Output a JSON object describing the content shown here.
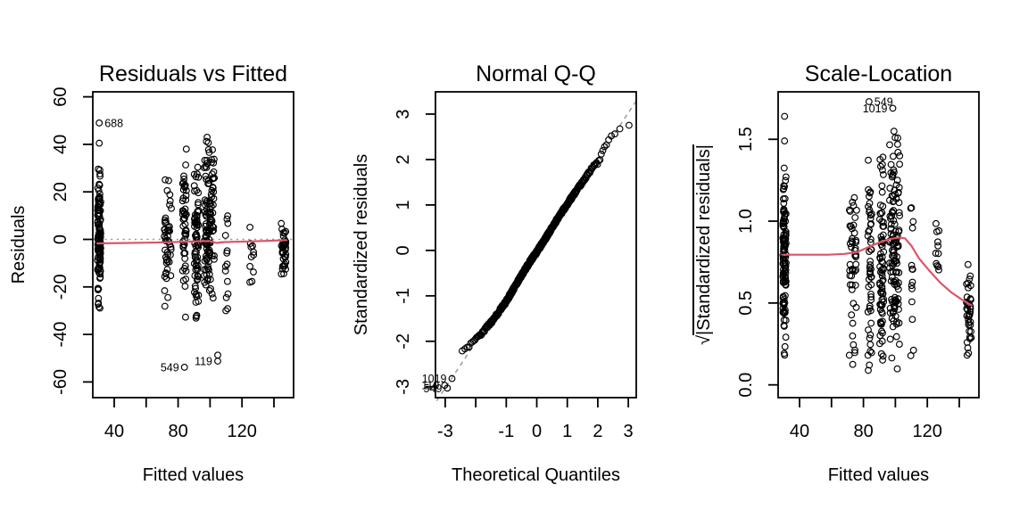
{
  "figure": {
    "background": "#ffffff",
    "point_color": "#000000",
    "smooth_line_color": "#dd5468",
    "reference_line_color": "#9c9c9c",
    "outlier_label_color": "#1c1c1c"
  },
  "chart_data": [
    {
      "type": "scatter",
      "title": "Residuals vs Fitted",
      "xlabel": "Fitted values",
      "ylabel": "Residuals",
      "xlim": [
        26.6,
        152.3
      ],
      "ylim": [
        -66.6,
        62.1
      ],
      "xticks": [
        40,
        60,
        80,
        100,
        120,
        140
      ],
      "xtick_labels": [
        "40",
        "",
        "80",
        "",
        "120",
        ""
      ],
      "yticks": [
        -60,
        -40,
        -20,
        0,
        20,
        40,
        60
      ],
      "ytick_labels": [
        "-60",
        "-40",
        "-20",
        "0",
        "20",
        "40",
        "60"
      ],
      "grid": false,
      "legend": null,
      "ref_line": {
        "type": "horizontal",
        "y": 0,
        "dash": "dotted"
      },
      "smooth": [
        [
          29.5,
          -1.7
        ],
        [
          45,
          -1.55
        ],
        [
          60,
          -1.4
        ],
        [
          72,
          -1.25
        ],
        [
          80,
          -1.1
        ],
        [
          88,
          -0.9
        ],
        [
          95,
          -0.75
        ],
        [
          100,
          -0.7
        ],
        [
          104,
          -1.5
        ],
        [
          108,
          -1.15
        ],
        [
          115,
          -1.0
        ],
        [
          125,
          -0.85
        ],
        [
          135,
          -0.65
        ],
        [
          147.5,
          -0.35
        ]
      ],
      "clusters": [
        {
          "x": 30.6,
          "sx": 1.0,
          "n": 115,
          "ymin": -33,
          "ymax": 33
        },
        {
          "x": 73.5,
          "sx": 2.3,
          "n": 48,
          "ymin": -31,
          "ymax": 31
        },
        {
          "x": 84.0,
          "sx": 1.2,
          "n": 52,
          "ymin": -35,
          "ymax": 40
        },
        {
          "x": 91.5,
          "sx": 1.4,
          "n": 75,
          "ymin": -40,
          "ymax": 37
        },
        {
          "x": 99.5,
          "sx": 3.2,
          "n": 125,
          "ymin": -36,
          "ymax": 46
        },
        {
          "x": 110.5,
          "sx": 0.9,
          "n": 14,
          "ymin": -32,
          "ymax": 21
        },
        {
          "x": 126.0,
          "sx": 1.3,
          "n": 11,
          "ymin": -22,
          "ymax": 13
        },
        {
          "x": 146.0,
          "sx": 1.5,
          "n": 38,
          "ymin": -18,
          "ymax": 10
        }
      ],
      "extra_points": [
        [
          30.6,
          40.5
        ],
        [
          104.8,
          -48.7
        ]
      ],
      "labeled_points": [
        {
          "x": 30.6,
          "y": 49.0,
          "label": "688",
          "side": "right"
        },
        {
          "x": 84.0,
          "y": -53.8,
          "label": "549",
          "side": "left"
        },
        {
          "x": 104.8,
          "y": -51.2,
          "label": "119",
          "side": "left"
        }
      ]
    },
    {
      "type": "scatter",
      "title": "Normal Q-Q",
      "xlabel": "Theoretical Quantiles",
      "ylabel": "Standardized residuals",
      "xlim": [
        -3.32,
        3.26
      ],
      "ylim": [
        -3.24,
        3.49
      ],
      "xticks": [
        -3,
        -2,
        -1,
        0,
        1,
        2,
        3
      ],
      "xtick_labels": [
        "-3",
        "",
        "-1",
        "0",
        "1",
        "2",
        "3"
      ],
      "yticks": [
        -3,
        -2,
        -1,
        0,
        1,
        2,
        3
      ],
      "ytick_labels": [
        "-3",
        "-2",
        "-1",
        "0",
        "1",
        "2",
        "3"
      ],
      "grid": false,
      "legend": null,
      "ref_line": {
        "type": "segment",
        "from": [
          -3.28,
          -3.31
        ],
        "to": [
          3.26,
          3.29
        ],
        "dash": "dashed"
      },
      "qq": {
        "n": 500,
        "skip_low": 3,
        "jitter": 0.035,
        "curve": [
          [
            -2.62,
            -2.28
          ],
          [
            -2.45,
            -2.2
          ],
          [
            -2.25,
            -2.12
          ],
          [
            -2.0,
            -1.97
          ],
          [
            -1.7,
            -1.74
          ],
          [
            -1.4,
            -1.5
          ],
          [
            -1.0,
            -1.12
          ],
          [
            -0.6,
            -0.66
          ],
          [
            -0.2,
            -0.22
          ],
          [
            0.0,
            -0.03
          ],
          [
            0.3,
            0.28
          ],
          [
            0.7,
            0.72
          ],
          [
            1.0,
            1.02
          ],
          [
            1.3,
            1.32
          ],
          [
            1.6,
            1.6
          ],
          [
            1.85,
            1.85
          ],
          [
            2.0,
            1.93
          ],
          [
            2.1,
            2.05
          ],
          [
            2.2,
            2.3
          ],
          [
            2.35,
            2.4
          ],
          [
            2.5,
            2.55
          ],
          [
            2.75,
            2.72
          ],
          [
            3.1,
            2.8
          ]
        ]
      },
      "labeled_points": [
        {
          "x": -2.78,
          "y": -2.82,
          "label": "1019",
          "side": "left"
        },
        {
          "x": -3.02,
          "y": -2.97,
          "label": "119",
          "side": "left"
        },
        {
          "x": -2.93,
          "y": -3.03,
          "label": "549",
          "side": "left"
        }
      ]
    },
    {
      "type": "scatter",
      "title": "Scale-Location",
      "xlabel": "Fitted values",
      "ylabel": "√|Standardized residuals|",
      "ylabel_parts": {
        "prefix": "√",
        "overline": "|Standardized residuals|"
      },
      "xlim": [
        26.6,
        152.3
      ],
      "ylim": [
        -0.078,
        1.79
      ],
      "xticks": [
        40,
        60,
        80,
        100,
        120,
        140
      ],
      "xtick_labels": [
        "40",
        "",
        "80",
        "",
        "120",
        ""
      ],
      "yticks": [
        0,
        0.5,
        1,
        1.5
      ],
      "ytick_labels": [
        "0.0",
        "0.5",
        "1.0",
        "1.5"
      ],
      "grid": false,
      "legend": null,
      "ref_line": null,
      "smooth": [
        [
          29.5,
          0.795
        ],
        [
          45,
          0.795
        ],
        [
          58,
          0.795
        ],
        [
          68,
          0.8
        ],
        [
          76,
          0.81
        ],
        [
          84,
          0.845
        ],
        [
          90,
          0.87
        ],
        [
          96,
          0.89
        ],
        [
          102,
          0.9
        ],
        [
          106,
          0.895
        ],
        [
          110,
          0.85
        ],
        [
          115,
          0.77
        ],
        [
          121,
          0.7
        ],
        [
          128,
          0.625
        ],
        [
          135,
          0.565
        ],
        [
          141,
          0.525
        ],
        [
          147.5,
          0.487
        ]
      ],
      "clusters": [
        {
          "x": 30.6,
          "sx": 1.0,
          "n": 115,
          "ymin": 0.13,
          "ymax": 1.38
        },
        {
          "x": 73.5,
          "sx": 2.3,
          "n": 48,
          "ymin": 0.1,
          "ymax": 1.35
        },
        {
          "x": 84.0,
          "sx": 1.2,
          "n": 52,
          "ymin": 0.02,
          "ymax": 1.45
        },
        {
          "x": 91.5,
          "sx": 1.4,
          "n": 75,
          "ymin": 0.06,
          "ymax": 1.47
        },
        {
          "x": 99.5,
          "sx": 3.2,
          "n": 125,
          "ymin": 0.07,
          "ymax": 1.6
        },
        {
          "x": 110.5,
          "sx": 0.9,
          "n": 14,
          "ymin": 0.07,
          "ymax": 1.15
        },
        {
          "x": 126.0,
          "sx": 1.3,
          "n": 11,
          "ymin": 0.5,
          "ymax": 1.12
        },
        {
          "x": 146.0,
          "sx": 1.5,
          "n": 38,
          "ymin": 0.12,
          "ymax": 0.78
        }
      ],
      "extra_points": [
        [
          30.6,
          1.64
        ],
        [
          30.6,
          1.49
        ]
      ],
      "labeled_points": [
        {
          "x": 83.5,
          "y": 1.73,
          "label": "549",
          "side": "right"
        },
        {
          "x": 98.4,
          "y": 1.69,
          "label": "1019",
          "side": "left"
        }
      ]
    }
  ]
}
